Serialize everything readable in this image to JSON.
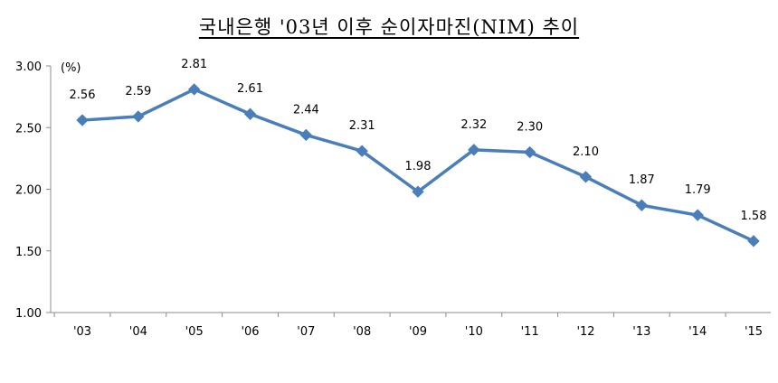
{
  "title": "국내은행 '03년 이후 순이자마진(NIM) 추이",
  "chart_data": {
    "type": "line",
    "title": "국내은행 '03년 이후 순이자마진(NIM) 추이",
    "unit": "(%)",
    "xlabel": "",
    "ylabel": "",
    "categories": [
      "'03",
      "'04",
      "'05",
      "'06",
      "'07",
      "'08",
      "'09",
      "'10",
      "'11",
      "'12",
      "'13",
      "'14",
      "'15"
    ],
    "series": [
      {
        "values": [
          2.56,
          2.59,
          2.81,
          2.61,
          2.44,
          2.31,
          1.98,
          2.32,
          2.3,
          2.1,
          1.87,
          1.79,
          1.58
        ],
        "labels": [
          "2.56",
          "2.59",
          "2.81",
          "2.61",
          "2.44",
          "2.31",
          "1.98",
          "2.32",
          "2.30",
          "2.10",
          "1.87",
          "1.79",
          "1.58"
        ],
        "color": "#4A7EBB",
        "marker": "diamond"
      }
    ],
    "ylim": [
      1.0,
      3.0
    ],
    "yticks": [
      "1.00",
      "1.50",
      "2.00",
      "2.50",
      "3.00"
    ],
    "ytick_values": [
      1.0,
      1.5,
      2.0,
      2.5,
      3.0
    ],
    "grid": false,
    "legend": "none"
  }
}
